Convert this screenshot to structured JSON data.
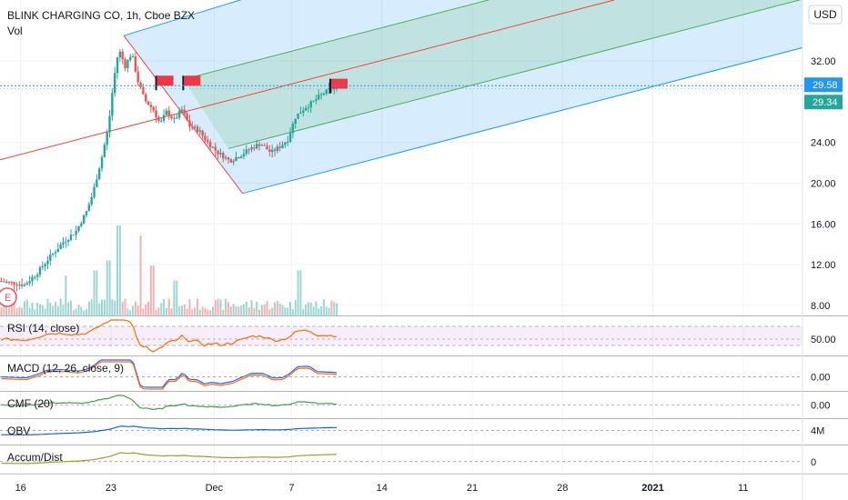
{
  "header": {
    "title": "BLINK CHARGING CO, 1h, Cboe BZX",
    "vol_label": "Vol",
    "currency": "USD"
  },
  "colors": {
    "up": "#26a69a",
    "down": "#ef5350",
    "channel_blue": "#2196f3",
    "channel_green": "#4caf50",
    "median_red": "#f44336",
    "rsi": "#ff6d00",
    "macd": "#2962ff",
    "signal": "#ff6d00",
    "cmf": "#43a047",
    "obv": "#1565c0",
    "adl": "#9e9d24",
    "price_tag_blue": "#2196f3",
    "price_tag_green": "#26a69a"
  },
  "chart_data": {
    "type": "candlestick",
    "title": "BLINK CHARGING CO, 1h, Cboe BZX",
    "y_unit": "USD",
    "price_axis_ticks": [
      "32.00",
      "29.58",
      "29.34",
      "24.00",
      "20.00",
      "16.00",
      "12.00",
      "8.00"
    ],
    "price_tick_values": [
      32,
      29.58,
      29.34,
      24,
      20,
      16,
      12,
      8
    ],
    "ylim": [
      7,
      38
    ],
    "x_ticks": [
      "16",
      "23",
      "Dec",
      "7",
      "14",
      "21",
      "28",
      "2021",
      "11"
    ],
    "x_tick_days": [
      0,
      7,
      15,
      21,
      28,
      35,
      42,
      49,
      56
    ],
    "xlim_days": [
      -1.6,
      60.6
    ],
    "current_price_tags": [
      {
        "value": "29.58",
        "price": 29.58,
        "color": "blue"
      },
      {
        "value": "29.34",
        "price": 29.34,
        "color": "green"
      }
    ],
    "price_path": [
      {
        "day": -1.5,
        "price": 10.4
      },
      {
        "day": 0.5,
        "price": 10.0
      },
      {
        "day": 1.5,
        "price": 11.2
      },
      {
        "day": 2.5,
        "price": 12.8
      },
      {
        "day": 3.5,
        "price": 14.2
      },
      {
        "day": 4.5,
        "price": 15.3
      },
      {
        "day": 5.3,
        "price": 17.2
      },
      {
        "day": 5.8,
        "price": 19.0
      },
      {
        "day": 6.5,
        "price": 22.6
      },
      {
        "day": 7.0,
        "price": 25.5
      },
      {
        "day": 7.4,
        "price": 30.0
      },
      {
        "day": 7.8,
        "price": 33.2
      },
      {
        "day": 8.3,
        "price": 31.5
      },
      {
        "day": 8.8,
        "price": 32.8
      },
      {
        "day": 9.3,
        "price": 30.0
      },
      {
        "day": 9.8,
        "price": 28.2
      },
      {
        "day": 10.5,
        "price": 27.2
      },
      {
        "day": 11.0,
        "price": 25.8
      },
      {
        "day": 11.5,
        "price": 27.0
      },
      {
        "day": 12.1,
        "price": 26.2
      },
      {
        "day": 12.7,
        "price": 27.2
      },
      {
        "day": 13.3,
        "price": 25.6
      },
      {
        "day": 14.0,
        "price": 25.2
      },
      {
        "day": 14.7,
        "price": 24.0
      },
      {
        "day": 15.5,
        "price": 23.0
      },
      {
        "day": 16.4,
        "price": 22.2
      },
      {
        "day": 17.3,
        "price": 22.8
      },
      {
        "day": 18.0,
        "price": 23.4
      },
      {
        "day": 18.8,
        "price": 23.9
      },
      {
        "day": 19.6,
        "price": 23.0
      },
      {
        "day": 20.3,
        "price": 23.6
      },
      {
        "day": 20.9,
        "price": 24.3
      },
      {
        "day": 21.5,
        "price": 26.5
      },
      {
        "day": 22.2,
        "price": 27.4
      },
      {
        "day": 22.8,
        "price": 27.9
      },
      {
        "day": 23.4,
        "price": 28.6
      },
      {
        "day": 24.0,
        "price": 29.1
      },
      {
        "day": 24.5,
        "price": 29.4
      }
    ],
    "volume_spikes": [
      {
        "day": 6.8,
        "rel": 0.55
      },
      {
        "day": 7.6,
        "rel": 0.9
      },
      {
        "day": 9.3,
        "rel": 0.8
      },
      {
        "day": 10.2,
        "rel": 0.5
      },
      {
        "day": 3.5,
        "rel": 0.4
      },
      {
        "day": 5.8,
        "rel": 0.45
      },
      {
        "day": 21.6,
        "rel": 0.45
      },
      {
        "day": 12.0,
        "rel": 0.35
      }
    ],
    "pitchfork": {
      "pivot": {
        "day": 8.0,
        "price": 34.5
      },
      "upper_handle": {
        "day": 12.6,
        "price": 30.2
      },
      "lower_handle": {
        "day": 17.2,
        "price": 19.0
      },
      "median_start": {
        "day": -1.6,
        "price": 22.3
      },
      "median_end": {
        "day": 46.0,
        "price": 38.0
      }
    },
    "flags": [
      {
        "day": 10.5,
        "price": 30.2
      },
      {
        "day": 12.6,
        "price": 30.2
      },
      {
        "day": 24.0,
        "price": 29.9
      }
    ],
    "event_marker": "E",
    "indicators": [
      {
        "name": "RSI (14, close)",
        "axis_ticks": [
          "50.00"
        ],
        "axis_values": [
          50
        ],
        "range": [
          30,
          80
        ],
        "band": [
          40,
          70
        ]
      },
      {
        "name": "MACD (12, 26, close, 9)",
        "axis_ticks": [
          "0.00"
        ],
        "axis_values": [
          0
        ],
        "range": [
          -1.5,
          2.4
        ]
      },
      {
        "name": "CMF (20)",
        "axis_ticks": [
          "0.00"
        ],
        "axis_values": [
          0
        ],
        "range": [
          -0.5,
          0.5
        ]
      },
      {
        "name": "OBV",
        "axis_ticks": [
          "4M"
        ],
        "axis_values": [
          4
        ],
        "range": [
          -10,
          14
        ]
      },
      {
        "name": "Accum/Dist",
        "axis_ticks": [
          "0"
        ],
        "axis_values": [
          0
        ],
        "range": [
          -8,
          12
        ]
      }
    ]
  }
}
